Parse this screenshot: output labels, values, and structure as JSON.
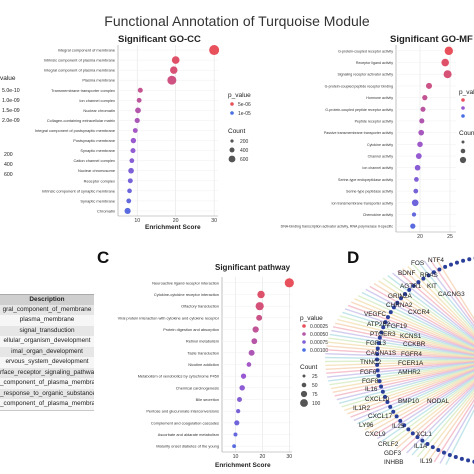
{
  "figure_title": "Functional Annotation of Turquoise Module",
  "panel_letters": {
    "c": "C",
    "d": "D"
  },
  "legend_titles": {
    "p_value": "p_value",
    "count": "Count"
  },
  "left_partial_legend": {
    "title": "value",
    "items": [
      "5.0e-10",
      "1.0e-09",
      "1.5e-09",
      "2.0e-09"
    ],
    "count_items": [
      "200",
      "400",
      "600"
    ]
  },
  "table": {
    "header": "Description",
    "rows": [
      "gral_component_of_membrane",
      "plasma_membrane",
      "signal_transduction",
      "ellular_organism_development",
      "imal_organ_development",
      "ervous_system_development",
      "rface_receptor_signaling_pathway",
      "_component_of_plasma_membrane",
      "_response_to_organic_substance",
      "_component_of_plasma_membrane"
    ]
  },
  "network_genes": [
    "FOS",
    "NTF4",
    "BDNF",
    "RRAS",
    "AGTR1",
    "KIT",
    "CACNG3",
    "GRIN2A",
    "CHRNA2",
    "VEGFC",
    "CXCR4",
    "ATP2B2",
    "FGF19",
    "PTGER3",
    "KCNS1",
    "FGF13",
    "CCKBR",
    "CACNA1S",
    "FGFR4",
    "TNNC2",
    "FCER1A",
    "FGF6",
    "AMHR2",
    "FGF8",
    "IL16",
    "CXCL10",
    "BMP10",
    "NODAL",
    "IL1R2",
    "CXCL17",
    "LY96",
    "IL25",
    "CXCL9",
    "XCL1",
    "CRLF2",
    "IL1A",
    "GDF3",
    "INHBB",
    "IL19"
  ],
  "chart_data": [
    {
      "type": "scatter",
      "title": "Significant GO-CC",
      "xlabel": "Enrichment Score",
      "ylabel": "",
      "x_ticks": [
        10,
        20,
        30
      ],
      "xlim": [
        5,
        31
      ],
      "grid": true,
      "legend": {
        "p_value": [
          "5e-06",
          "1e-05"
        ],
        "count": [
          "200",
          "400",
          "600"
        ]
      },
      "categories": [
        "Integral component of membrane",
        "Intrinsic component of plasma membrane",
        "Integral component of plasma membrane",
        "Plasma membrane",
        "Transmembrane transporter complex",
        "Ion channel complex",
        "Nuclear chromatin",
        "Collagen-containing extracellular matrix",
        "Integral component of postsynaptic membrane",
        "Postsynaptic membrane",
        "Synaptic membrane",
        "Cation channel complex",
        "Nuclear chromosome",
        "Receptor complex",
        "Intrinsic component of synaptic membrane",
        "Synaptic membrane",
        "Chromatin"
      ],
      "values": [
        30.0,
        20.0,
        19.5,
        19.0,
        10.8,
        10.5,
        10.2,
        10.0,
        9.5,
        9.0,
        8.9,
        8.6,
        8.4,
        8.2,
        8.0,
        7.8,
        7.5
      ],
      "counts": [
        650,
        300,
        280,
        480,
        70,
        60,
        120,
        80,
        60,
        90,
        70,
        55,
        110,
        65,
        50,
        60,
        150
      ]
    },
    {
      "type": "scatter",
      "title": "Significant GO-MF",
      "xlabel": "",
      "ylabel": "",
      "x_ticks": [
        20,
        25
      ],
      "xlim": [
        16,
        26
      ],
      "grid": true,
      "categories": [
        "G-protein-coupled receptor activity",
        "Receptor ligand activity",
        "Signaling receptor activator activity",
        "G-protein-coupled peptide receptor binding",
        "Hormone activity",
        "G-protein-coupled peptide receptor activity",
        "Peptide receptor activity",
        "Passive transmembrane transporter activity",
        "Cytokine activity",
        "Channel activity",
        "Ion channel activity",
        "Serine-type endopeptidase activity",
        "Serine-type peptidase activity",
        "Ion transmembrane transporter activity",
        "Chemokine activity",
        "DNA-binding transcription activator activity, RNA polymerase II-specific"
      ],
      "values": [
        24.8,
        24.2,
        24.6,
        21.5,
        20.8,
        20.5,
        20.3,
        20.2,
        20.0,
        19.8,
        19.6,
        19.4,
        19.3,
        19.2,
        19.0,
        18.8
      ],
      "counts": [
        400,
        300,
        350,
        150,
        90,
        80,
        80,
        120,
        110,
        130,
        120,
        60,
        60,
        200,
        40,
        90
      ]
    },
    {
      "type": "scatter",
      "title": "Significant pathway",
      "xlabel": "Enrichment Score",
      "ylabel": "",
      "x_ticks": [
        10,
        20,
        30
      ],
      "xlim": [
        5,
        31
      ],
      "grid": true,
      "legend": {
        "p_value": [
          "0.00025",
          "0.00050",
          "0.00075",
          "0.00100"
        ],
        "count": [
          "25",
          "50",
          "75",
          "100"
        ]
      },
      "categories": [
        "Neuroactive ligand-receptor interaction",
        "Cytokine-cytokine receptor interaction",
        "Olfactory transduction",
        "Viral protein interaction with cytokine and cytokine receptor",
        "Protein digestion and absorption",
        "Retinol metabolism",
        "Taste transduction",
        "Nicotine addiction",
        "Metabolism of xenobiotics by cytochrome P450",
        "Chemical carcinogenesis",
        "Bile secretion",
        "Pentose and glucuronate interconversions",
        "Complement and coagulation cascades",
        "Ascorbate and aldarate metabolism",
        "Maturity onset diabetes of the young"
      ],
      "values": [
        30.0,
        19.5,
        19.0,
        18.8,
        17.5,
        17.0,
        16.0,
        15.0,
        13.0,
        12.5,
        11.5,
        11.0,
        10.5,
        10.0,
        9.5
      ],
      "counts": [
        110,
        60,
        80,
        30,
        35,
        28,
        30,
        12,
        20,
        22,
        15,
        8,
        18,
        6,
        5
      ]
    }
  ]
}
